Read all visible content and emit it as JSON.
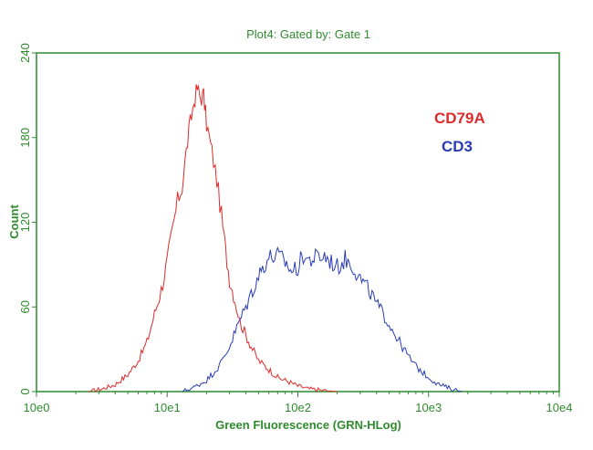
{
  "chart_data": {
    "type": "line",
    "title": "Plot4:  Gated by: Gate 1",
    "xlabel": "Green Fluorescence (GRN-HLog)",
    "ylabel": "Count",
    "x_scale": "log",
    "xlim": [
      1,
      10000
    ],
    "ylim": [
      0,
      240
    ],
    "x_ticks": [
      1,
      10,
      100,
      1000,
      10000
    ],
    "x_tick_labels": [
      "10e0",
      "10e1",
      "10e2",
      "10e3",
      "10e4"
    ],
    "y_ticks": [
      0,
      60,
      120,
      180,
      240
    ],
    "y_tick_labels": [
      "0",
      "60",
      "120",
      "180",
      "240"
    ],
    "grid": false,
    "legend_position": "top-right",
    "series": [
      {
        "name": "CD79A",
        "color": "#dd2a2a",
        "x": [
          2.5,
          3.2,
          4.0,
          5.0,
          6.0,
          7.0,
          8.0,
          9.0,
          10.0,
          11.0,
          12.0,
          13.0,
          14.0,
          15.0,
          16.0,
          17.0,
          18.0,
          19.0,
          20.0,
          22.0,
          24.0,
          26.0,
          28.0,
          30.0,
          33.0,
          36.0,
          40.0,
          45.0,
          50.0,
          56.0,
          63.0,
          70.0,
          80.0,
          90.0,
          100.0,
          120.0,
          150.0,
          200.0
        ],
        "y": [
          0,
          2,
          5,
          12,
          22,
          35,
          55,
          72,
          92,
          115,
          135,
          145,
          170,
          190,
          205,
          215,
          208,
          210,
          190,
          170,
          150,
          125,
          100,
          80,
          65,
          50,
          40,
          30,
          22,
          18,
          14,
          10,
          8,
          6,
          4,
          2,
          1,
          0
        ]
      },
      {
        "name": "CD3",
        "color": "#2a3cb5",
        "x": [
          13.0,
          16.0,
          20.0,
          25.0,
          30.0,
          35.0,
          40.0,
          45.0,
          50.0,
          55.0,
          60.0,
          70.0,
          80.0,
          90.0,
          100.0,
          110.0,
          120.0,
          140.0,
          160.0,
          180.0,
          200.0,
          230.0,
          260.0,
          300.0,
          350.0,
          400.0,
          450.0,
          500.0,
          600.0,
          700.0,
          800.0,
          1000.0,
          1200.0,
          1500.0,
          1800.0
        ],
        "y": [
          0,
          3,
          8,
          18,
          32,
          48,
          60,
          72,
          82,
          90,
          95,
          96,
          92,
          85,
          88,
          97,
          93,
          95,
          96,
          92,
          88,
          94,
          90,
          80,
          72,
          62,
          55,
          48,
          35,
          25,
          18,
          10,
          5,
          2,
          0
        ]
      }
    ]
  }
}
